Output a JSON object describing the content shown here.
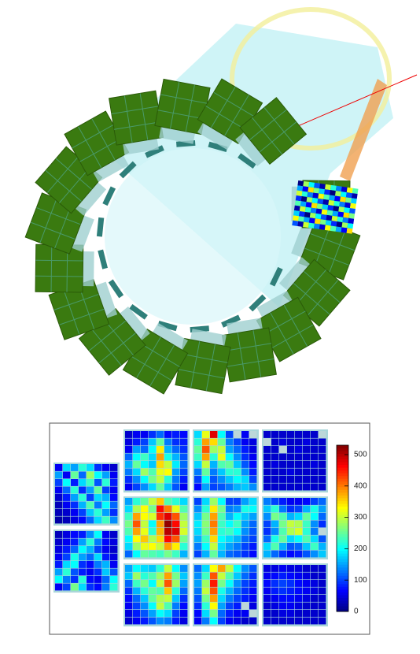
{
  "colorbar": {
    "lim": [
      0,
      530
    ],
    "ticks": [
      0,
      100,
      200,
      300,
      400,
      500
    ]
  },
  "modules": [
    {
      "cells": [
        [
          60,
          180,
          150,
          220,
          180,
          90,
          60,
          40
        ],
        [
          150,
          60,
          250,
          120,
          280,
          200,
          150,
          60
        ],
        [
          100,
          200,
          80,
          180,
          230,
          110,
          220,
          80
        ],
        [
          60,
          120,
          220,
          90,
          150,
          250,
          100,
          60
        ],
        [
          40,
          80,
          150,
          220,
          100,
          180,
          160,
          70
        ],
        [
          30,
          60,
          90,
          160,
          240,
          130,
          200,
          120
        ],
        [
          30,
          40,
          60,
          100,
          170,
          220,
          150,
          90
        ],
        [
          20,
          30,
          50,
          70,
          120,
          180,
          230,
          140
        ]
      ]
    },
    {
      "cells": [
        [
          30,
          50,
          70,
          80,
          140,
          200,
          60,
          40
        ],
        [
          40,
          60,
          80,
          150,
          220,
          130,
          70,
          50
        ],
        [
          50,
          80,
          120,
          200,
          160,
          100,
          60,
          40
        ],
        [
          60,
          100,
          210,
          150,
          120,
          180,
          80,
          50
        ],
        [
          80,
          180,
          200,
          90,
          70,
          130,
          160,
          60
        ],
        [
          150,
          220,
          110,
          80,
          60,
          90,
          170,
          110
        ],
        [
          200,
          130,
          90,
          220,
          70,
          60,
          120,
          200
        ],
        [
          60,
          100,
          260,
          180,
          90,
          70,
          130,
          220
        ]
      ]
    },
    {
      "cells": [
        [
          40,
          60,
          60,
          90,
          120,
          70,
          80,
          70
        ],
        [
          50,
          80,
          100,
          170,
          250,
          130,
          90,
          80
        ],
        [
          60,
          150,
          120,
          200,
          340,
          160,
          120,
          90
        ],
        [
          120,
          200,
          230,
          180,
          380,
          210,
          160,
          110
        ],
        [
          160,
          250,
          200,
          170,
          350,
          300,
          190,
          120
        ],
        [
          130,
          180,
          280,
          240,
          320,
          330,
          150,
          100
        ],
        [
          90,
          140,
          200,
          260,
          300,
          220,
          130,
          80
        ],
        [
          60,
          100,
          140,
          180,
          250,
          170,
          110,
          60
        ]
      ]
    },
    {
      "cells": [
        [
          180,
          320,
          480,
          200,
          100,
          null,
          60,
          null
        ],
        [
          220,
          380,
          350,
          250,
          130,
          100,
          60,
          50
        ],
        [
          250,
          420,
          280,
          300,
          150,
          120,
          80,
          50
        ],
        [
          230,
          380,
          220,
          320,
          200,
          140,
          90,
          60
        ],
        [
          180,
          300,
          160,
          240,
          250,
          170,
          110,
          70
        ],
        [
          130,
          250,
          130,
          170,
          220,
          220,
          140,
          80
        ],
        [
          100,
          200,
          110,
          140,
          170,
          200,
          180,
          100
        ],
        [
          70,
          150,
          100,
          110,
          130,
          160,
          170,
          140
        ]
      ]
    },
    {
      "cells": [
        [
          40,
          40,
          40,
          40,
          40,
          40,
          40,
          null
        ],
        [
          null,
          40,
          50,
          40,
          40,
          50,
          40,
          40
        ],
        [
          40,
          40,
          null,
          40,
          50,
          40,
          40,
          40
        ],
        [
          40,
          40,
          40,
          40,
          40,
          40,
          40,
          40
        ],
        [
          40,
          50,
          40,
          40,
          40,
          40,
          50,
          40
        ],
        [
          40,
          40,
          40,
          50,
          40,
          40,
          40,
          40
        ],
        [
          40,
          40,
          40,
          40,
          40,
          40,
          40,
          40
        ],
        [
          40,
          40,
          40,
          40,
          40,
          40,
          40,
          40
        ]
      ]
    },
    {
      "cells": [
        [
          150,
          220,
          250,
          300,
          360,
          240,
          220,
          180
        ],
        [
          180,
          290,
          330,
          260,
          460,
          400,
          320,
          240
        ],
        [
          230,
          380,
          330,
          310,
          440,
          480,
          420,
          280
        ],
        [
          260,
          420,
          300,
          200,
          380,
          520,
          460,
          300
        ],
        [
          240,
          380,
          320,
          220,
          370,
          500,
          480,
          310
        ],
        [
          200,
          330,
          360,
          290,
          350,
          460,
          420,
          260
        ],
        [
          180,
          280,
          320,
          330,
          300,
          380,
          340,
          220
        ],
        [
          120,
          200,
          250,
          240,
          230,
          260,
          230,
          160
        ]
      ]
    },
    {
      "cells": [
        [
          100,
          180,
          280,
          200,
          100,
          100,
          150,
          180
        ],
        [
          140,
          220,
          340,
          260,
          130,
          140,
          210,
          200
        ],
        [
          170,
          260,
          380,
          240,
          160,
          200,
          170,
          150
        ],
        [
          190,
          270,
          400,
          230,
          200,
          230,
          150,
          120
        ],
        [
          180,
          260,
          380,
          220,
          230,
          200,
          140,
          110
        ],
        [
          160,
          230,
          350,
          200,
          180,
          160,
          120,
          100
        ],
        [
          130,
          200,
          300,
          180,
          150,
          130,
          100,
          80
        ],
        [
          100,
          160,
          250,
          160,
          120,
          110,
          90,
          70
        ]
      ]
    },
    {
      "cells": [
        [
          130,
          100,
          80,
          60,
          60,
          70,
          100,
          120
        ],
        [
          170,
          220,
          130,
          90,
          100,
          160,
          210,
          150
        ],
        [
          140,
          260,
          240,
          160,
          180,
          250,
          200,
          120
        ],
        [
          100,
          160,
          260,
          300,
          290,
          230,
          140,
          90
        ],
        [
          90,
          140,
          240,
          290,
          310,
          220,
          130,
          null
        ],
        [
          120,
          210,
          250,
          180,
          200,
          240,
          180,
          110
        ],
        [
          180,
          240,
          160,
          110,
          120,
          170,
          230,
          160
        ],
        [
          160,
          120,
          90,
          70,
          80,
          110,
          140,
          170
        ]
      ]
    },
    {
      "cells": [
        [
          150,
          200,
          180,
          170,
          220,
          300,
          200,
          140
        ],
        [
          170,
          280,
          220,
          240,
          280,
          380,
          260,
          170
        ],
        [
          120,
          230,
          260,
          200,
          300,
          420,
          280,
          150
        ],
        [
          90,
          160,
          220,
          250,
          240,
          360,
          220,
          120
        ],
        [
          70,
          120,
          170,
          250,
          290,
          300,
          170,
          90
        ],
        [
          60,
          100,
          140,
          200,
          300,
          240,
          130,
          70
        ],
        [
          50,
          80,
          110,
          150,
          200,
          180,
          100,
          60
        ],
        [
          40,
          60,
          80,
          110,
          140,
          130,
          80,
          50
        ]
      ]
    },
    {
      "cells": [
        [
          120,
          180,
          330,
          380,
          300,
          200,
          140,
          110
        ],
        [
          140,
          230,
          420,
          300,
          240,
          170,
          120,
          90
        ],
        [
          150,
          280,
          450,
          260,
          200,
          140,
          100,
          80
        ],
        [
          130,
          300,
          420,
          210,
          160,
          120,
          90,
          70
        ],
        [
          110,
          260,
          380,
          180,
          130,
          100,
          80,
          60
        ],
        [
          90,
          220,
          330,
          150,
          100,
          80,
          null,
          50
        ],
        [
          70,
          180,
          260,
          120,
          80,
          60,
          60,
          null
        ],
        [
          60,
          130,
          200,
          100,
          60,
          50,
          40,
          40
        ]
      ]
    },
    {
      "cells": [
        [
          50,
          50,
          60,
          50,
          50,
          40,
          40,
          40
        ],
        [
          60,
          70,
          80,
          70,
          60,
          50,
          40,
          40
        ],
        [
          70,
          90,
          100,
          90,
          70,
          60,
          50,
          40
        ],
        [
          60,
          80,
          90,
          80,
          70,
          60,
          50,
          40
        ],
        [
          50,
          60,
          70,
          70,
          60,
          50,
          40,
          40
        ],
        [
          40,
          50,
          60,
          60,
          50,
          40,
          40,
          40
        ],
        [
          40,
          40,
          50,
          50,
          40,
          40,
          40,
          40
        ],
        [
          40,
          40,
          40,
          40,
          40,
          40,
          40,
          40
        ]
      ]
    }
  ]
}
